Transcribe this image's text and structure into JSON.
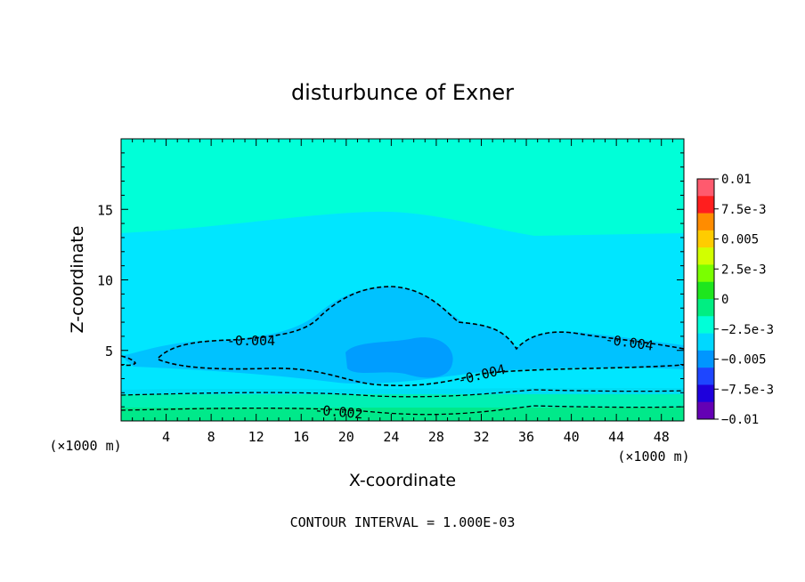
{
  "chart_data": {
    "type": "heatmap",
    "title": "disturbunce of Exner",
    "xlabel": "X-coordinate",
    "ylabel": "Z-coordinate",
    "x_unit_left": "(×1000 m)",
    "x_unit_right": "(×1000 m)",
    "xlim": [
      0,
      50
    ],
    "ylim": [
      0,
      20
    ],
    "x_ticks": [
      "4",
      "8",
      "12",
      "16",
      "20",
      "24",
      "28",
      "32",
      "36",
      "40",
      "44",
      "48"
    ],
    "y_ticks": [
      "5",
      "10",
      "15"
    ],
    "colorbar": {
      "range": [
        -0.01,
        0.01
      ],
      "labels": [
        "0.01",
        "7.5e-3",
        "0.005",
        "2.5e-3",
        "0",
        "−2.5e-3",
        "−0.005",
        "−7.5e-3",
        "−0.01"
      ],
      "colors": [
        "#ff5a6e",
        "#ff1e1e",
        "#ff8c00",
        "#ffcc00",
        "#d2ff00",
        "#7aff00",
        "#1ee61e",
        "#00ee82",
        "#00ffd8",
        "#00d8ff",
        "#0096ff",
        "#1e46ff",
        "#1e00dc",
        "#6400b4"
      ]
    },
    "contour_labels": [
      "-0.004",
      "-0.004",
      "-0.004",
      "-0.002"
    ],
    "contour_interval_text": "CONTOUR INTERVAL = 1.000E-03"
  }
}
